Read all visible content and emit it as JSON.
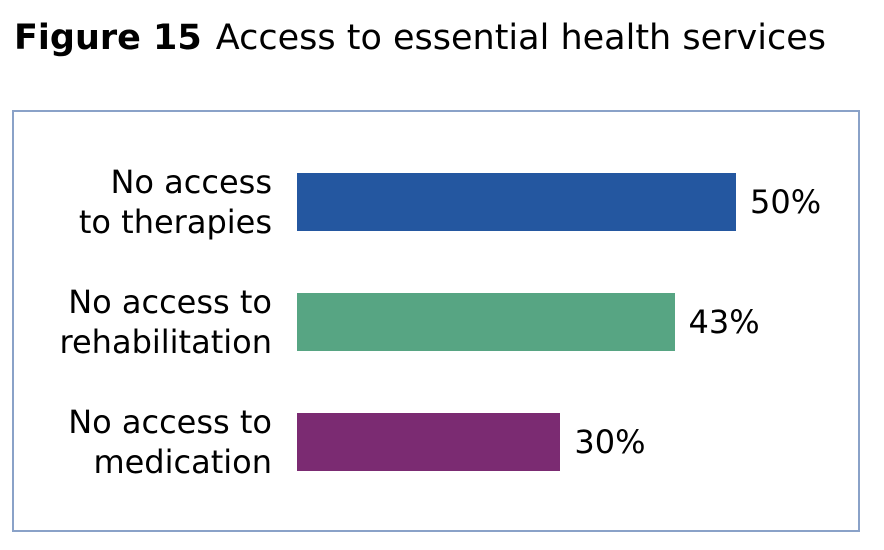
{
  "chart_data": {
    "type": "bar",
    "orientation": "horizontal",
    "figure_label": "Figure 15",
    "title": "Access to essential health services",
    "categories": [
      "No access\nto therapies",
      "No access to\nrehabilitation",
      "No access to\nmedication"
    ],
    "values": [
      50,
      43,
      30
    ],
    "value_labels": [
      "50%",
      "43%",
      "30%"
    ],
    "colors": [
      "#2457a0",
      "#57a583",
      "#7b2b72"
    ]
  }
}
